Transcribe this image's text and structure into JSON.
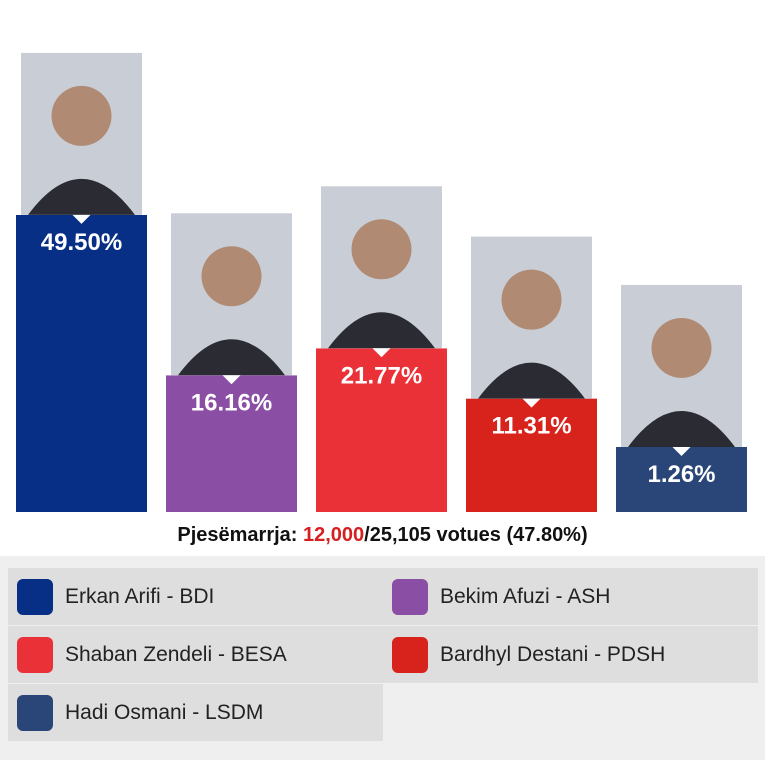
{
  "chart_data": {
    "type": "bar",
    "categories": [
      "Erkan Arifi - BDI",
      "Bekim Afuzi - ASH",
      "Shaban Zendeli - BESA",
      "Bardhyl Destani - PDSH",
      "Hadi Osmani - LSDM"
    ],
    "series": [
      {
        "values": [
          49.5,
          16.16,
          21.77,
          11.31,
          1.26
        ],
        "value_labels": [
          "49.50%",
          "16.16%",
          "21.77%",
          "11.31%",
          "1.26%"
        ],
        "colors": [
          "#082f86",
          "#8a4fa5",
          "#ea3137",
          "#d8231c",
          "#2a4678"
        ]
      }
    ],
    "annotations": {
      "turnout_label": "Pjesëmarrja:",
      "turnout_voted": "12,000",
      "turnout_rest": "/25,105 votues (47.80%)"
    },
    "legend": {
      "columns": 2
    }
  }
}
